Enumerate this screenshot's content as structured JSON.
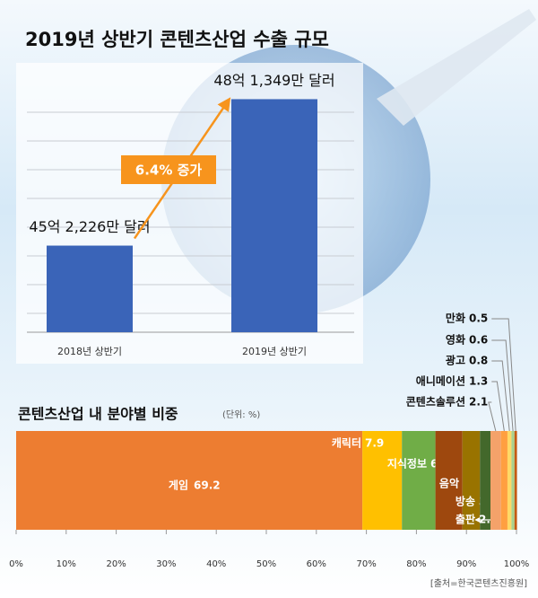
{
  "chart_data": [
    {
      "type": "bar",
      "title": "2019년 상반기 콘텐츠산업 수출 규모",
      "categories": [
        "2018년 상반기",
        "2019년 상반기"
      ],
      "values": [
        4522260000,
        4813490000
      ],
      "value_labels": [
        "45억 2,226만 달러",
        "48억 1,349만 달러"
      ],
      "color": "#3a64b8",
      "ylim": [
        4350000000,
        4900000000
      ],
      "annotation": "6.4% 증가"
    },
    {
      "type": "stacked-bar",
      "title": "콘텐츠산업 내 분야별 비중",
      "subtitle": "(단위: %)",
      "xlim": [
        0,
        100
      ],
      "xticks": [
        {
          "value": 0,
          "label": "0%"
        },
        {
          "value": 10,
          "label": "10%"
        },
        {
          "value": 20,
          "label": "20%"
        },
        {
          "value": 30,
          "label": "30%"
        },
        {
          "value": 40,
          "label": "40%"
        },
        {
          "value": 50,
          "label": "50%"
        },
        {
          "value": 60,
          "label": "60%"
        },
        {
          "value": 70,
          "label": "70%"
        },
        {
          "value": 80,
          "label": "80%"
        },
        {
          "value": 90,
          "label": "90%"
        },
        {
          "value": 100,
          "label": "100%"
        }
      ],
      "series": [
        {
          "name": "게임",
          "color": "#ed7d31",
          "values": [
            69.2
          ]
        },
        {
          "name": "캐릭터",
          "color": "#ffc000",
          "values": [
            7.9
          ]
        },
        {
          "name": "지식정보",
          "color": "#70ad47",
          "values": [
            6.7
          ]
        },
        {
          "name": "음악",
          "color": "#9e480e",
          "values": [
            5.4
          ]
        },
        {
          "name": "방송",
          "color": "#997300",
          "values": [
            3.5
          ]
        },
        {
          "name": "출판",
          "color": "#43682b",
          "values": [
            2.1
          ]
        },
        {
          "name": "콘텐츠솔루션",
          "color": "#f4a26a",
          "values": [
            2.1
          ]
        },
        {
          "name": "애니메이션",
          "color": "#ff9f40",
          "values": [
            1.3
          ]
        },
        {
          "name": "광고",
          "color": "#ffd966",
          "values": [
            0.8
          ]
        },
        {
          "name": "영화",
          "color": "#a9d18e",
          "values": [
            0.6
          ]
        },
        {
          "name": "만화",
          "color": "#c55a11",
          "values": [
            0.5
          ]
        }
      ],
      "source": "[출처=한국콘텐츠진흥원]"
    }
  ]
}
